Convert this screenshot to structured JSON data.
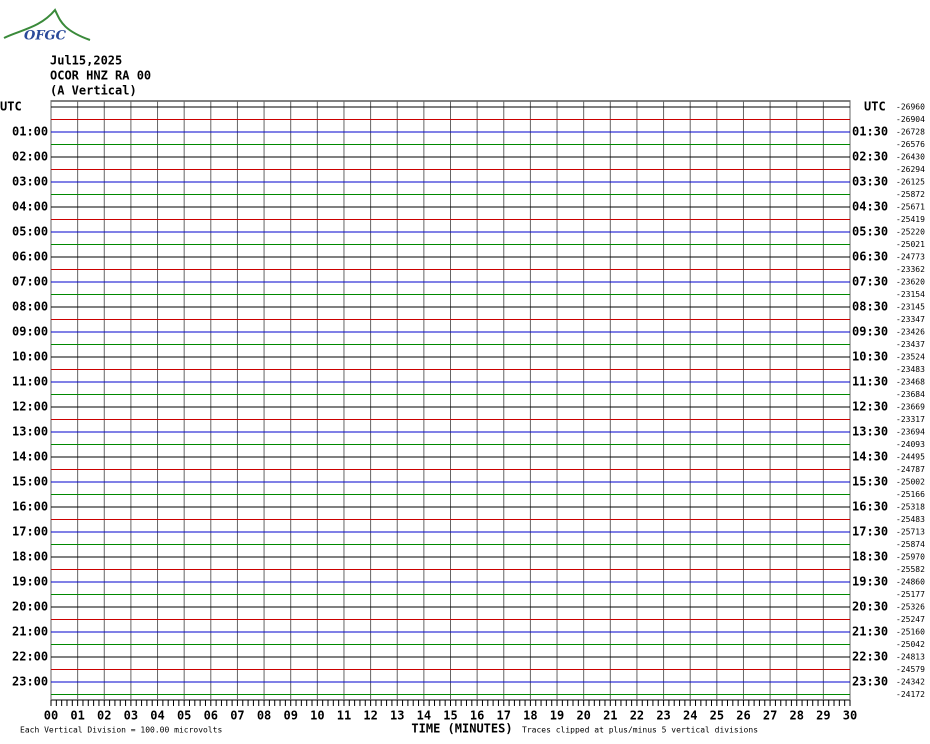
{
  "logo": "OFGC",
  "header": {
    "lines": [
      "Jul15,2025",
      "OCOR HNZ RA 00",
      "(A Vertical)"
    ]
  },
  "left_label": "UTC",
  "right_label": "UTC",
  "left_times": [
    "01:00",
    "02:00",
    "03:00",
    "04:00",
    "05:00",
    "06:00",
    "07:00",
    "08:00",
    "09:00",
    "10:00",
    "11:00",
    "12:00",
    "13:00",
    "14:00",
    "15:00",
    "16:00",
    "17:00",
    "18:00",
    "19:00",
    "20:00",
    "21:00",
    "22:00",
    "23:00"
  ],
  "right_times": [
    "01:30",
    "02:30",
    "03:30",
    "04:30",
    "05:30",
    "06:30",
    "07:30",
    "08:30",
    "09:30",
    "10:30",
    "11:30",
    "12:30",
    "13:30",
    "14:30",
    "15:30",
    "16:30",
    "17:30",
    "18:30",
    "19:30",
    "20:30",
    "21:30",
    "22:30",
    "23:30"
  ],
  "row_offsets": [
    "-26960",
    "-26904",
    "-26728",
    "-26576",
    "-26430",
    "-26294",
    "-26125",
    "-25872",
    "-25671",
    "-25419",
    "-25220",
    "-25021",
    "-24773",
    "-23362",
    "-23620",
    "-23154",
    "-23145",
    "-23347",
    "-23426",
    "-23437",
    "-23524",
    "-23483",
    "-23468",
    "-23684",
    "-23669",
    "-23317",
    "-23694",
    "-24093",
    "-24495",
    "-24787",
    "-25002",
    "-25166",
    "-25318",
    "-25483",
    "-25713",
    "-25874",
    "-25970",
    "-25582",
    "-24860",
    "-25177",
    "-25326",
    "-25247",
    "-25160",
    "-25042",
    "-24813",
    "-24579",
    "-24342",
    "-24172"
  ],
  "x_labels": [
    "00",
    "01",
    "02",
    "03",
    "04",
    "05",
    "06",
    "07",
    "08",
    "09",
    "10",
    "11",
    "12",
    "13",
    "14",
    "15",
    "16",
    "17",
    "18",
    "19",
    "20",
    "21",
    "22",
    "23",
    "24",
    "25",
    "26",
    "27",
    "28",
    "29",
    "30"
  ],
  "x_title": "TIME (MINUTES)",
  "footer_left": "Each Vertical Division =  100.00 microvolts",
  "footer_right": "Traces clipped at plus/minus 5 vertical divisions"
}
